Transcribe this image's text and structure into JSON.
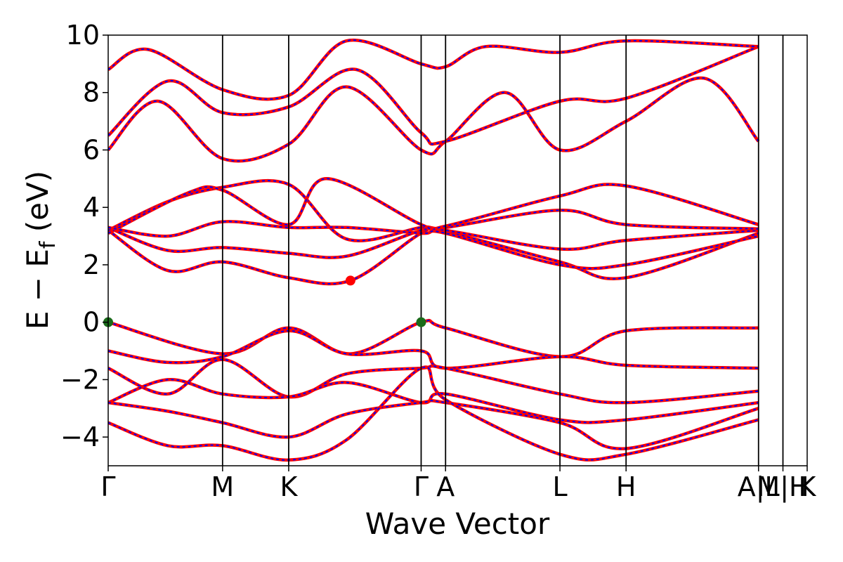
{
  "chart_data": {
    "type": "line",
    "title": "",
    "xlabel": "Wave Vector",
    "ylabel": "E − E_f (eV)",
    "ylabel_parts": {
      "main": "E  −  E",
      "sub": "f",
      "unit": " (eV)"
    },
    "ylim": [
      -5,
      10
    ],
    "yticks": [
      -4,
      -2,
      0,
      2,
      4,
      6,
      8,
      10
    ],
    "ytick_labels": [
      "−4",
      "−2",
      "0",
      "2",
      "4",
      "6",
      "8",
      "10"
    ],
    "kpath_labels": [
      "Γ",
      "M",
      "K",
      "Γ",
      "A",
      "L",
      "H",
      "A|L",
      "M|H",
      "K"
    ],
    "kpath_positions": [
      0.0,
      0.576,
      0.909,
      1.576,
      1.699,
      2.275,
      2.608,
      3.275,
      3.398,
      3.52
    ],
    "kpath_segment_breaks": [
      3.275,
      3.398
    ],
    "grid": false,
    "legend": "none",
    "series_colors": {
      "band_primary": "#ff0000",
      "band_overlay": "#0000ff"
    },
    "conduction_bands": [
      {
        "x": [
          0,
          0.3,
          0.576,
          0.909,
          1.22,
          1.576,
          1.699,
          2.275,
          2.608,
          3.275
        ],
        "y": [
          3.2,
          1.8,
          2.1,
          1.55,
          1.45,
          3.1,
          3.15,
          2.1,
          1.55,
          3.1
        ]
      },
      {
        "x": [
          0,
          0.3,
          0.576,
          0.909,
          1.2,
          1.576,
          1.699,
          2.275,
          2.608,
          3.275
        ],
        "y": [
          3.3,
          2.5,
          2.6,
          2.4,
          2.3,
          3.2,
          3.2,
          2.55,
          2.85,
          3.2
        ]
      },
      {
        "x": [
          0,
          0.3,
          0.576,
          0.909,
          1.2,
          1.576,
          1.699,
          2.275,
          2.608,
          3.275
        ],
        "y": [
          3.2,
          4.2,
          4.7,
          4.8,
          2.9,
          3.3,
          3.3,
          3.9,
          3.4,
          3.25
        ]
      },
      {
        "x": [
          0,
          0.4,
          0.576,
          0.909,
          1.1,
          1.576,
          1.699,
          2.275,
          2.608,
          3.275
        ],
        "y": [
          3.1,
          4.5,
          4.6,
          3.4,
          5.0,
          3.4,
          3.35,
          4.4,
          4.75,
          3.4
        ]
      },
      {
        "x": [
          0,
          0.3,
          0.576,
          0.909,
          1.2,
          1.576,
          1.699,
          2.275,
          2.608,
          3.275
        ],
        "y": [
          3.3,
          3.0,
          3.5,
          3.3,
          3.3,
          3.1,
          3.1,
          2.0,
          2.0,
          3.0
        ]
      },
      {
        "x": [
          0,
          0.25,
          0.576,
          0.909,
          1.2,
          1.576,
          1.699,
          2.0,
          2.275,
          2.608,
          3.0,
          3.275
        ],
        "y": [
          6.0,
          7.7,
          5.7,
          6.2,
          8.2,
          6.0,
          6.3,
          8.0,
          6.0,
          7.0,
          8.5,
          6.3
        ]
      },
      {
        "x": [
          0,
          0.3,
          0.576,
          0.909,
          1.25,
          1.576,
          1.699,
          2.275,
          2.608,
          3.275
        ],
        "y": [
          6.5,
          8.4,
          7.3,
          7.5,
          8.8,
          6.6,
          6.3,
          7.7,
          7.8,
          9.6
        ]
      },
      {
        "x": [
          0,
          0.2,
          0.576,
          0.909,
          1.2,
          1.576,
          1.699,
          1.9,
          2.275,
          2.608,
          3.275
        ],
        "y": [
          8.8,
          9.5,
          8.1,
          7.9,
          9.8,
          9.0,
          8.9,
          9.6,
          9.4,
          9.8,
          9.6
        ]
      }
    ],
    "valence_bands": [
      {
        "x": [
          0,
          0.576,
          0.909,
          1.22,
          1.576,
          1.699,
          2.275,
          2.608,
          3.275
        ],
        "y": [
          0,
          -1.1,
          -0.2,
          -1.1,
          0,
          -0.2,
          -1.2,
          -0.3,
          -0.2
        ]
      },
      {
        "x": [
          0,
          0.3,
          0.576,
          0.909,
          1.2,
          1.576,
          1.699,
          2.275,
          2.608,
          3.275
        ],
        "y": [
          -1.0,
          -1.4,
          -1.2,
          -0.3,
          -1.1,
          -1.0,
          -1.6,
          -1.2,
          -1.5,
          -1.6
        ]
      },
      {
        "x": [
          0,
          0.3,
          0.576,
          0.909,
          1.2,
          1.576,
          1.699,
          2.275,
          2.608,
          3.275
        ],
        "y": [
          -1.6,
          -2.5,
          -1.3,
          -2.6,
          -1.8,
          -1.6,
          -1.6,
          -2.5,
          -2.8,
          -2.4
        ]
      },
      {
        "x": [
          0,
          0.3,
          0.576,
          0.909,
          1.2,
          1.576,
          1.699,
          2.275,
          2.608,
          3.275
        ],
        "y": [
          -2.8,
          -2.0,
          -2.5,
          -2.6,
          -2.1,
          -2.8,
          -2.5,
          -3.4,
          -3.4,
          -2.8
        ]
      },
      {
        "x": [
          0,
          0.3,
          0.576,
          0.909,
          1.2,
          1.576,
          1.699,
          2.275,
          2.608,
          3.275
        ],
        "y": [
          -2.8,
          -3.1,
          -3.5,
          -4.0,
          -3.2,
          -2.8,
          -2.8,
          -3.5,
          -4.4,
          -3.0
        ]
      },
      {
        "x": [
          0,
          0.3,
          0.576,
          0.909,
          1.2,
          1.576,
          1.699,
          2.275,
          2.608,
          3.275
        ],
        "y": [
          -3.5,
          -4.3,
          -4.3,
          -4.8,
          -4.1,
          -1.6,
          -2.7,
          -4.6,
          -4.6,
          -3.4
        ]
      }
    ],
    "band_extrema_markers": [
      {
        "x": 0.0,
        "y": 0.0,
        "role": "VBM",
        "color": "#1a6b1a"
      },
      {
        "x": 1.576,
        "y": 0.0,
        "role": "VBM",
        "color": "#1a6b1a"
      },
      {
        "x": 1.22,
        "y": 1.45,
        "role": "CBM",
        "color": "#ff0000"
      }
    ]
  }
}
